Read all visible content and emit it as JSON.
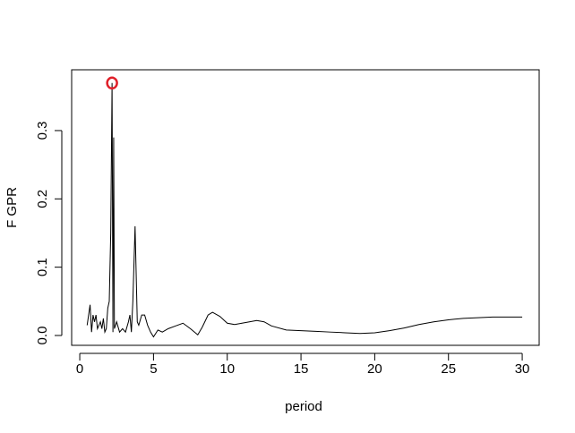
{
  "chart_data": {
    "type": "line",
    "xlabel": "period",
    "ylabel": "F GPR",
    "x": [
      0.5,
      0.7,
      0.8,
      0.9,
      1.0,
      1.1,
      1.2,
      1.4,
      1.5,
      1.6,
      1.7,
      1.8,
      1.9,
      2.0,
      2.1,
      2.19,
      2.25,
      2.3,
      2.35,
      2.5,
      2.7,
      2.9,
      3.1,
      3.3,
      3.4,
      3.5,
      3.6,
      3.75,
      3.9,
      4.0,
      4.2,
      4.4,
      4.6,
      4.8,
      5.0,
      5.3,
      5.6,
      6.0,
      6.5,
      7.0,
      7.5,
      8.0,
      8.3,
      8.7,
      9.0,
      9.5,
      10,
      10.5,
      11,
      12,
      12.5,
      13,
      14,
      15,
      16,
      17,
      18,
      19,
      20,
      21,
      22,
      23,
      24,
      25,
      26,
      27,
      28,
      29,
      30
    ],
    "series": [
      {
        "color": "#000000",
        "values": [
          0.015,
          0.045,
          0.005,
          0.03,
          0.02,
          0.03,
          0.01,
          0.02,
          0.01,
          0.025,
          0.005,
          0.01,
          0.04,
          0.05,
          0.15,
          0.3696,
          0.005,
          0.29,
          0.01,
          0.02,
          0.005,
          0.01,
          0.005,
          0.02,
          0.03,
          0.005,
          0.05,
          0.16,
          0.02,
          0.015,
          0.03,
          0.03,
          0.015,
          0.005,
          -0.002,
          0.008,
          0.005,
          0.01,
          0.014,
          0.018,
          0.01,
          0.001,
          0.012,
          0.03,
          0.034,
          0.028,
          0.018,
          0.016,
          0.018,
          0.022,
          0.02,
          0.014,
          0.008,
          0.007,
          0.006,
          0.005,
          0.004,
          0.003,
          0.004,
          0.007,
          0.011,
          0.016,
          0.02,
          0.023,
          0.025,
          0.026,
          0.027,
          0.027,
          0.027
        ]
      }
    ],
    "highlight": {
      "x": 2.19,
      "y": 0.3696,
      "color": "#e0202a"
    },
    "xlim": [
      -0.55,
      31.15
    ],
    "ylim": [
      -0.0144,
      0.389
    ],
    "xticks": [
      0,
      5,
      10,
      15,
      20,
      25,
      30
    ],
    "yticks": [
      {
        "value": 0,
        "label": "0.0"
      },
      {
        "value": 0.1,
        "label": "0.1"
      },
      {
        "value": 0.2,
        "label": "0.2"
      },
      {
        "value": 0.3,
        "label": "0.3"
      }
    ]
  }
}
